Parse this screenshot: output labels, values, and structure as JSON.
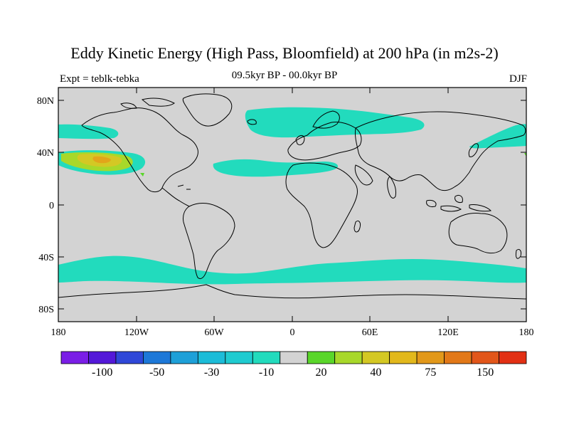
{
  "title": "Eddy Kinetic Energy (High Pass, Bloomfield) at 200 hPa (in m2s-2)",
  "subtitle_center": "09.5kyr BP - 00.0kyr BP",
  "subtitle_left": "Expt = teblk-tebka",
  "subtitle_right": "DJF",
  "colors": {
    "land_ocean_bg": "#d3d3d3",
    "coast": "#000000",
    "teal": "#22dbbd",
    "yellow_green": "#a8d82a",
    "yellow": "#d4c824",
    "orange": "#e2a51a"
  },
  "map": {
    "lat_ticks": [
      "80N",
      "40N",
      "0",
      "40S",
      "80S"
    ],
    "lon_ticks": [
      "180",
      "120W",
      "60W",
      "0",
      "60E",
      "120E",
      "180"
    ]
  },
  "colorbar": {
    "colors": [
      "#7a1ee6",
      "#5318d8",
      "#2f48d8",
      "#1d78d8",
      "#1ea0d8",
      "#1cbcd8",
      "#1fcbd0",
      "#22dbbd",
      "#d3d3d3",
      "#5ad62a",
      "#a8d82a",
      "#d4c824",
      "#e2b81c",
      "#e2981a",
      "#e27818",
      "#e2561a",
      "#e23014"
    ],
    "labels": [
      "-100",
      "-50",
      "-30",
      "-10",
      "20",
      "40",
      "75",
      "150"
    ]
  }
}
